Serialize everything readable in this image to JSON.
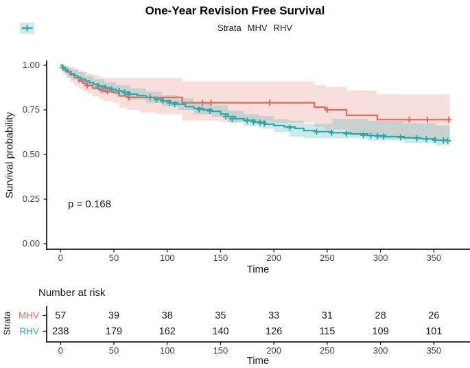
{
  "chart_data": {
    "type": "line",
    "subtype": "kaplan-meier-step",
    "title": "One-Year Revision Free Survival",
    "legend_title": "Strata",
    "legend_position": "top",
    "xlabel": "Time",
    "ylabel": "Survival probability",
    "pvalue_text": "p = 0.168",
    "xlim": [
      0,
      365
    ],
    "ylim": [
      0,
      1
    ],
    "grid": false,
    "x_ticks": [
      0,
      50,
      100,
      150,
      200,
      250,
      300,
      350
    ],
    "y_ticks": [
      {
        "label": "1.00",
        "value": 1.0
      },
      {
        "label": "0.75",
        "value": 0.75
      },
      {
        "label": "0.50",
        "value": 0.5
      },
      {
        "label": "0.25",
        "value": 0.25
      },
      {
        "label": "0.00",
        "value": 0.0
      }
    ],
    "series": [
      {
        "name": "MHV",
        "color": "#E0685C",
        "band_color": "rgba(224,104,92,0.21)",
        "key_bg": "#F6D6D2",
        "steps": [
          [
            0,
            1.0
          ],
          [
            2,
            0.982
          ],
          [
            5,
            0.965
          ],
          [
            9,
            0.947
          ],
          [
            13,
            0.93
          ],
          [
            17,
            0.912
          ],
          [
            21,
            0.899
          ],
          [
            25,
            0.886
          ],
          [
            30,
            0.871
          ],
          [
            36,
            0.862
          ],
          [
            40,
            0.853
          ],
          [
            50,
            0.845
          ],
          [
            55,
            0.828
          ],
          [
            62,
            0.82
          ],
          [
            114,
            0.79
          ],
          [
            238,
            0.765
          ],
          [
            248,
            0.75
          ],
          [
            268,
            0.72
          ],
          [
            297,
            0.695
          ],
          [
            365,
            0.695
          ]
        ],
        "censors": [
          [
            25,
            0.886
          ],
          [
            38,
            0.862
          ],
          [
            44,
            0.853
          ],
          [
            64,
            0.82
          ],
          [
            84,
            0.82
          ],
          [
            133,
            0.79
          ],
          [
            141,
            0.79
          ],
          [
            196,
            0.79
          ],
          [
            250,
            0.75
          ],
          [
            327,
            0.695
          ],
          [
            344,
            0.695
          ],
          [
            364,
            0.695
          ]
        ],
        "ci": [
          [
            0,
            1.0,
            1.0
          ],
          [
            2,
            0.955,
            1.0
          ],
          [
            5,
            0.93,
            0.995
          ],
          [
            9,
            0.905,
            0.99
          ],
          [
            13,
            0.885,
            0.982
          ],
          [
            17,
            0.868,
            0.972
          ],
          [
            21,
            0.855,
            0.962
          ],
          [
            25,
            0.84,
            0.953
          ],
          [
            30,
            0.825,
            0.945
          ],
          [
            36,
            0.81,
            0.936
          ],
          [
            40,
            0.8,
            0.93
          ],
          [
            50,
            0.79,
            0.93
          ],
          [
            55,
            0.762,
            0.93
          ],
          [
            62,
            0.75,
            0.93
          ],
          [
            75,
            0.735,
            0.93
          ],
          [
            90,
            0.725,
            0.93
          ],
          [
            114,
            0.69,
            0.91
          ],
          [
            150,
            0.682,
            0.91
          ],
          [
            200,
            0.678,
            0.91
          ],
          [
            238,
            0.655,
            0.888
          ],
          [
            248,
            0.64,
            0.878
          ],
          [
            268,
            0.615,
            0.858
          ],
          [
            297,
            0.588,
            0.838
          ],
          [
            365,
            0.588,
            0.838
          ]
        ]
      },
      {
        "name": "RHV",
        "color": "#2EA7A9",
        "band_color": "rgba(46,167,169,0.24)",
        "key_bg": "#CFE9E9",
        "steps": [
          [
            0,
            1.0
          ],
          [
            2,
            0.987
          ],
          [
            4,
            0.975
          ],
          [
            7,
            0.962
          ],
          [
            10,
            0.952
          ],
          [
            13,
            0.942
          ],
          [
            16,
            0.932
          ],
          [
            19,
            0.922
          ],
          [
            23,
            0.912
          ],
          [
            27,
            0.902
          ],
          [
            31,
            0.893
          ],
          [
            36,
            0.883
          ],
          [
            41,
            0.874
          ],
          [
            46,
            0.865
          ],
          [
            52,
            0.856
          ],
          [
            58,
            0.848
          ],
          [
            65,
            0.838
          ],
          [
            72,
            0.83
          ],
          [
            80,
            0.82
          ],
          [
            88,
            0.81
          ],
          [
            95,
            0.8
          ],
          [
            103,
            0.79
          ],
          [
            110,
            0.782
          ],
          [
            117,
            0.768
          ],
          [
            125,
            0.758
          ],
          [
            134,
            0.75
          ],
          [
            142,
            0.742
          ],
          [
            150,
            0.727
          ],
          [
            157,
            0.712
          ],
          [
            164,
            0.7
          ],
          [
            172,
            0.692
          ],
          [
            182,
            0.682
          ],
          [
            192,
            0.67
          ],
          [
            200,
            0.662
          ],
          [
            210,
            0.655
          ],
          [
            220,
            0.646
          ],
          [
            228,
            0.634
          ],
          [
            238,
            0.628
          ],
          [
            255,
            0.622
          ],
          [
            272,
            0.615
          ],
          [
            288,
            0.606
          ],
          [
            305,
            0.6
          ],
          [
            322,
            0.594
          ],
          [
            338,
            0.588
          ],
          [
            352,
            0.58
          ],
          [
            362,
            0.577
          ],
          [
            365,
            0.577
          ]
        ],
        "censors": [
          [
            2,
            0.987
          ],
          [
            35,
            0.883
          ],
          [
            42,
            0.874
          ],
          [
            48,
            0.865
          ],
          [
            55,
            0.856
          ],
          [
            60,
            0.848
          ],
          [
            64,
            0.838
          ],
          [
            90,
            0.807
          ],
          [
            96,
            0.8
          ],
          [
            102,
            0.79
          ],
          [
            107,
            0.782
          ],
          [
            130,
            0.752
          ],
          [
            140,
            0.744
          ],
          [
            155,
            0.712
          ],
          [
            161,
            0.7
          ],
          [
            175,
            0.69
          ],
          [
            181,
            0.682
          ],
          [
            187,
            0.678
          ],
          [
            191,
            0.674
          ],
          [
            215,
            0.65
          ],
          [
            240,
            0.627
          ],
          [
            254,
            0.622
          ],
          [
            268,
            0.616
          ],
          [
            284,
            0.608
          ],
          [
            291,
            0.606
          ],
          [
            297,
            0.602
          ],
          [
            303,
            0.6
          ],
          [
            319,
            0.596
          ],
          [
            334,
            0.59
          ],
          [
            343,
            0.587
          ],
          [
            351,
            0.581
          ],
          [
            359,
            0.578
          ],
          [
            363,
            0.577
          ]
        ],
        "ci": [
          [
            0,
            1.0,
            1.0
          ],
          [
            2,
            0.962,
            1.0
          ],
          [
            4,
            0.948,
            0.995
          ],
          [
            7,
            0.932,
            0.985
          ],
          [
            10,
            0.92,
            0.977
          ],
          [
            16,
            0.9,
            0.962
          ],
          [
            23,
            0.882,
            0.94
          ],
          [
            31,
            0.862,
            0.922
          ],
          [
            41,
            0.843,
            0.905
          ],
          [
            52,
            0.825,
            0.888
          ],
          [
            65,
            0.806,
            0.87
          ],
          [
            80,
            0.788,
            0.852
          ],
          [
            95,
            0.768,
            0.832
          ],
          [
            110,
            0.75,
            0.815
          ],
          [
            125,
            0.725,
            0.79
          ],
          [
            142,
            0.71,
            0.775
          ],
          [
            157,
            0.678,
            0.745
          ],
          [
            172,
            0.658,
            0.726
          ],
          [
            186,
            0.645,
            0.715
          ],
          [
            200,
            0.625,
            0.698
          ],
          [
            215,
            0.6,
            0.69
          ],
          [
            228,
            0.592,
            0.672
          ],
          [
            255,
            0.59,
            0.7
          ],
          [
            288,
            0.578,
            0.688
          ],
          [
            322,
            0.565,
            0.675
          ],
          [
            352,
            0.552,
            0.662
          ],
          [
            365,
            0.548,
            0.66
          ]
        ]
      }
    ],
    "risk_table": {
      "header": "Number at risk",
      "strata_label": "Strata",
      "xlabel": "Time",
      "x_ticks": [
        0,
        50,
        100,
        150,
        200,
        250,
        300,
        350
      ],
      "rows": [
        {
          "group": "MHV",
          "counts": [
            57,
            39,
            38,
            35,
            33,
            31,
            28,
            26
          ]
        },
        {
          "group": "RHV",
          "counts": [
            238,
            179,
            162,
            140,
            126,
            115,
            109,
            101
          ]
        }
      ]
    }
  }
}
